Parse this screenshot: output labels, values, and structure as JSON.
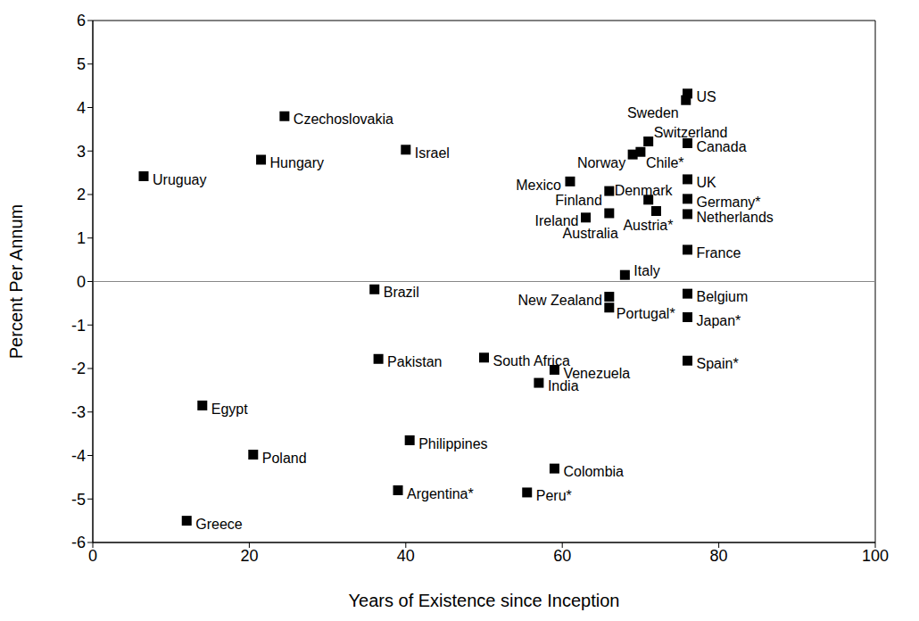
{
  "chart_data": {
    "type": "scatter",
    "x_label": "Years of Existence since Inception",
    "y_label": "Percent Per Annum",
    "labels": [
      "Uruguay",
      "Czechoslovakia",
      "Hungary",
      "Israel",
      "Brazil",
      "Pakistan",
      "Egypt",
      "Poland",
      "Greece",
      "Philippines",
      "Argentina*",
      "South Africa",
      "Venezuela",
      "India",
      "Colombia",
      "Peru*",
      "US",
      "Sweden",
      "Switzerland",
      "Canada",
      "Norway",
      "Chile*",
      "Mexico",
      "UK",
      "Denmark",
      "Finland",
      "Germany*",
      "Ireland",
      "Australia",
      "Austria*",
      "Netherlands",
      "France",
      "Italy",
      "New Zealand",
      "Portugal*",
      "Belgium",
      "Japan*",
      "Spain*"
    ],
    "x": [
      6.5,
      24.5,
      21.5,
      40,
      36,
      36.5,
      14,
      20.5,
      12,
      40.5,
      39,
      50,
      59,
      57,
      59,
      55.5,
      76,
      75.8,
      71,
      76,
      69,
      70,
      61,
      76,
      71,
      66,
      76,
      63,
      66,
      72,
      76,
      76,
      68,
      66,
      66,
      76,
      76,
      76
    ],
    "values": [
      2.42,
      3.8,
      2.8,
      3.03,
      -0.18,
      -1.78,
      -2.85,
      -3.98,
      -5.5,
      -3.65,
      -4.8,
      -1.75,
      -2.03,
      -2.33,
      -4.3,
      -4.85,
      4.32,
      4.17,
      3.22,
      3.18,
      2.92,
      2.98,
      2.3,
      2.35,
      1.88,
      2.08,
      1.9,
      1.47,
      1.57,
      1.62,
      1.55,
      0.73,
      0.15,
      -0.35,
      -0.6,
      -0.28,
      -0.82,
      -1.82
    ],
    "color": "#000000",
    "marker": "square",
    "xlim": [
      0,
      100
    ],
    "xticks": [
      0,
      20,
      40,
      60,
      80,
      100
    ],
    "ylim": [
      -6,
      6
    ],
    "yticks": [
      -6,
      -5,
      -4,
      -3,
      -2,
      -1,
      0,
      1,
      2,
      3,
      4,
      5,
      6
    ],
    "reference_y": 0,
    "grid": false
  }
}
